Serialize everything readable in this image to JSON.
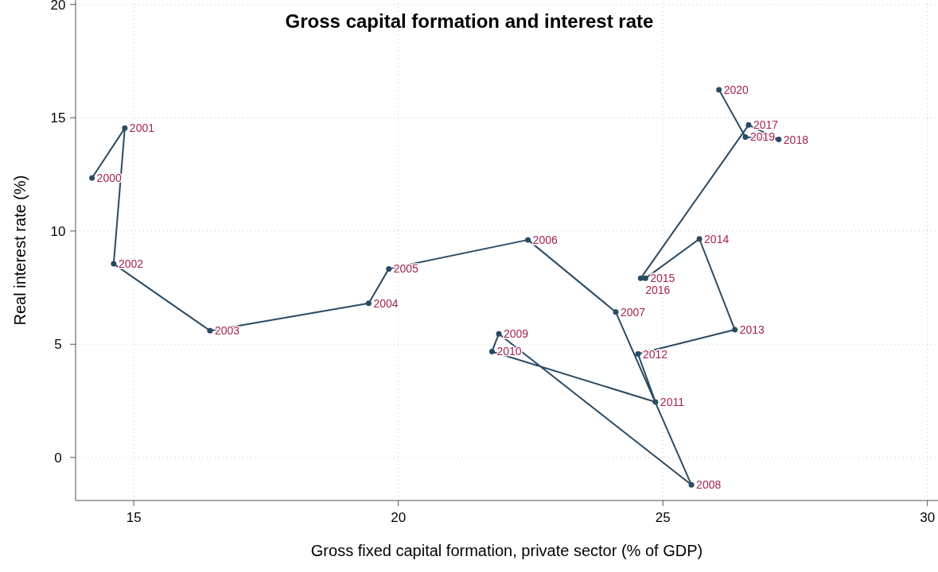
{
  "chart_data": {
    "type": "line",
    "title": "Gross capital formation and interest rate",
    "xlabel": "Gross fixed capital formation, private sector (% of GDP)",
    "ylabel": "Real interest rate (%)",
    "x": [
      14.21,
      14.83,
      14.62,
      16.44,
      19.44,
      19.82,
      22.45,
      24.11,
      25.54,
      21.9,
      21.77,
      24.86,
      24.53,
      26.36,
      25.69,
      24.67,
      24.58,
      26.62,
      27.19,
      26.56,
      26.06
    ],
    "series": [
      {
        "color": "#2b4a63",
        "values": [
          12.34,
          14.54,
          8.55,
          5.6,
          6.81,
          8.33,
          9.61,
          6.42,
          -1.21,
          5.46,
          4.68,
          2.45,
          4.57,
          5.64,
          9.65,
          7.91,
          7.91,
          14.68,
          14.04,
          14.15,
          16.24
        ]
      }
    ],
    "annotations": [
      {
        "text": "2000",
        "x": 14.21,
        "y": 12.34
      },
      {
        "text": "2001",
        "x": 14.83,
        "y": 14.54
      },
      {
        "text": "2002",
        "x": 14.62,
        "y": 8.55
      },
      {
        "text": "2003",
        "x": 16.44,
        "y": 5.6
      },
      {
        "text": "2004",
        "x": 19.44,
        "y": 6.81
      },
      {
        "text": "2005",
        "x": 19.82,
        "y": 8.33
      },
      {
        "text": "2006",
        "x": 22.45,
        "y": 9.61
      },
      {
        "text": "2007",
        "x": 24.11,
        "y": 6.42
      },
      {
        "text": "2008",
        "x": 25.54,
        "y": -1.21
      },
      {
        "text": "2009",
        "x": 21.9,
        "y": 5.46
      },
      {
        "text": "2010",
        "x": 21.77,
        "y": 4.68
      },
      {
        "text": "2011",
        "x": 24.86,
        "y": 2.45
      },
      {
        "text": "2012",
        "x": 24.53,
        "y": 4.57
      },
      {
        "text": "2013",
        "x": 26.36,
        "y": 5.64
      },
      {
        "text": "2014",
        "x": 25.69,
        "y": 9.65
      },
      {
        "text": "2015",
        "x": 24.67,
        "y": 7.91
      },
      {
        "text": "2016",
        "x": 24.58,
        "y": 7.91
      },
      {
        "text": "2017",
        "x": 26.62,
        "y": 14.68
      },
      {
        "text": "2018",
        "x": 27.19,
        "y": 14.04
      },
      {
        "text": "2019",
        "x": 26.56,
        "y": 14.15
      },
      {
        "text": "2020",
        "x": 26.06,
        "y": 16.24
      }
    ],
    "xlim": [
      13.9,
      30.2
    ],
    "xticks": [
      15,
      20,
      25,
      30
    ],
    "ylim": [
      -1.9,
      20.2
    ],
    "yticks": [
      0,
      5,
      10,
      15,
      20
    ],
    "grid": true,
    "marker": "circle",
    "line_style": "solid"
  }
}
